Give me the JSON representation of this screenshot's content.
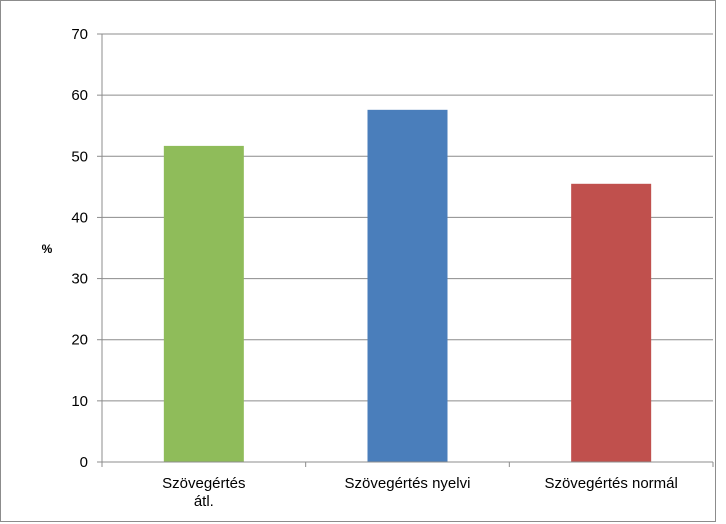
{
  "chart_data": {
    "type": "bar",
    "categories": [
      "Szövegértés átl.",
      "Szövegértés nyelvi",
      "Szövegértés normál"
    ],
    "category_lines": [
      [
        "Szövegértés",
        "átl."
      ],
      [
        "Szövegértés nyelvi"
      ],
      [
        "Szövegértés normál"
      ]
    ],
    "values": [
      51.7,
      57.6,
      45.5
    ],
    "colors": [
      "#8fbc5a",
      "#4a7ebb",
      "#c0504d"
    ],
    "ylabel": "%",
    "ylim": [
      0,
      70
    ],
    "yticks": [
      0,
      10,
      20,
      30,
      40,
      50,
      60,
      70
    ],
    "grid": true,
    "legend": "none"
  }
}
